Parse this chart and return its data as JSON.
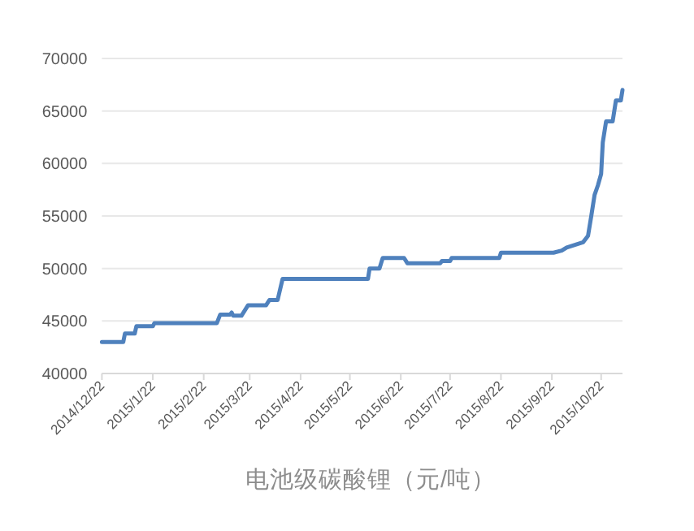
{
  "chart_data": {
    "type": "line",
    "title": "电池级碳酸锂（元/吨）",
    "color": "#4f81bd",
    "grid": "y",
    "line_style": "solid",
    "marker": "none",
    "x": [
      "2014-12-22",
      "2015-01-04",
      "2015-01-05",
      "2015-01-11",
      "2015-01-12",
      "2015-01-22",
      "2015-01-23",
      "2015-03-02",
      "2015-03-04",
      "2015-03-10",
      "2015-03-11",
      "2015-03-12",
      "2015-03-17",
      "2015-03-21",
      "2015-04-01",
      "2015-04-03",
      "2015-04-08",
      "2015-04-11",
      "2015-06-02",
      "2015-06-03",
      "2015-06-09",
      "2015-06-11",
      "2015-06-24",
      "2015-06-26",
      "2015-07-16",
      "2015-07-17",
      "2015-07-22",
      "2015-07-23",
      "2015-08-21",
      "2015-08-22",
      "2015-09-23",
      "2015-09-28",
      "2015-10-01",
      "2015-10-11",
      "2015-10-14",
      "2015-10-16",
      "2015-10-18",
      "2015-10-20",
      "2015-10-22",
      "2015-10-23",
      "2015-10-25",
      "2015-10-29",
      "2015-10-31",
      "2015-11-03",
      "2015-11-04"
    ],
    "values": [
      43000,
      43000,
      43800,
      43800,
      44500,
      44500,
      44800,
      44800,
      45600,
      45600,
      45800,
      45500,
      45500,
      46500,
      46500,
      47000,
      47000,
      49000,
      49000,
      50000,
      50000,
      51000,
      51000,
      50500,
      50500,
      50700,
      50700,
      51000,
      51000,
      51500,
      51500,
      51700,
      52000,
      52500,
      53100,
      55000,
      57000,
      57900,
      59000,
      62000,
      64000,
      64000,
      66000,
      66000,
      67000
    ],
    "xlim": [
      "2014-12-22",
      "2015-11-04"
    ],
    "xticks": [
      {
        "value": "2014-12-22",
        "label": "2014/12/22"
      },
      {
        "value": "2015-01-22",
        "label": "2015/1/22"
      },
      {
        "value": "2015-02-22",
        "label": "2015/2/22"
      },
      {
        "value": "2015-03-22",
        "label": "2015/3/22"
      },
      {
        "value": "2015-04-22",
        "label": "2015/4/22"
      },
      {
        "value": "2015-05-22",
        "label": "2015/5/22"
      },
      {
        "value": "2015-06-22",
        "label": "2015/6/22"
      },
      {
        "value": "2015-07-22",
        "label": "2015/7/22"
      },
      {
        "value": "2015-08-22",
        "label": "2015/8/22"
      },
      {
        "value": "2015-09-22",
        "label": "2015/9/22"
      },
      {
        "value": "2015-10-22",
        "label": "2015/10/22"
      }
    ],
    "ylim": [
      40000,
      70000
    ],
    "yticks": [
      40000,
      45000,
      50000,
      55000,
      60000,
      65000,
      70000
    ]
  }
}
